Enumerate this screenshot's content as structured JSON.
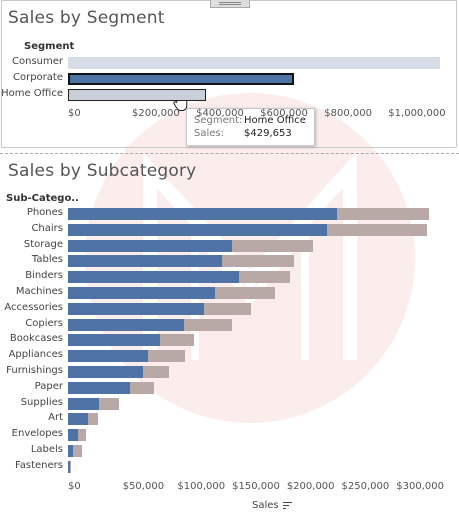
{
  "segment_chart": {
    "title": "Sales by Segment",
    "axis_header": "Segment",
    "categories": [
      "Consumer",
      "Corporate",
      "Home Office"
    ],
    "values": [
      1161401,
      706146,
      429653
    ],
    "selected": "Corporate",
    "hovered": "Home Office",
    "ticks": [
      "$0",
      "$200,000",
      "$400,000",
      "$600,000",
      "$800,000",
      "$1,000,000"
    ],
    "xlim": [
      0,
      1200000
    ],
    "colors": {
      "muted": "#d7dde6",
      "selected": "#4e73a4",
      "hover": "#c9cfd8"
    }
  },
  "tooltip": {
    "segment_key": "Segment:",
    "segment_value": "Home Office",
    "sales_key": "Sales:",
    "sales_value": "$429,653"
  },
  "subcategory_chart": {
    "title": "Sales by Subcategory",
    "axis_header": "Sub-Catego..",
    "x_label": "Sales",
    "sort_icon": "sort-descending-icon",
    "xlim": [
      0,
      340000
    ],
    "ticks": [
      "$0",
      "$50,000",
      "$100,000",
      "$150,000",
      "$200,000",
      "$250,000",
      "$300,000"
    ],
    "colors": {
      "selected": "#4e73a4",
      "total": "#b8a9a6"
    },
    "categories": [
      "Phones",
      "Chairs",
      "Storage",
      "Tables",
      "Binders",
      "Machines",
      "Accessories",
      "Copiers",
      "Bookcases",
      "Appliances",
      "Furnishings",
      "Paper",
      "Supplies",
      "Art",
      "Envelopes",
      "Labels",
      "Fasteners"
    ],
    "series": [
      {
        "values": [
          246000,
          237000,
          150000,
          141000,
          156000,
          134000,
          124000,
          106000,
          84000,
          73000,
          69000,
          57000,
          28000,
          18000,
          9000,
          5000,
          1500
        ]
      },
      {
        "values": [
          330000,
          328000,
          224000,
          207000,
          203000,
          189000,
          167000,
          150000,
          115000,
          107000,
          92000,
          79000,
          47000,
          27000,
          16000,
          12500,
          3000
        ]
      }
    ]
  }
}
